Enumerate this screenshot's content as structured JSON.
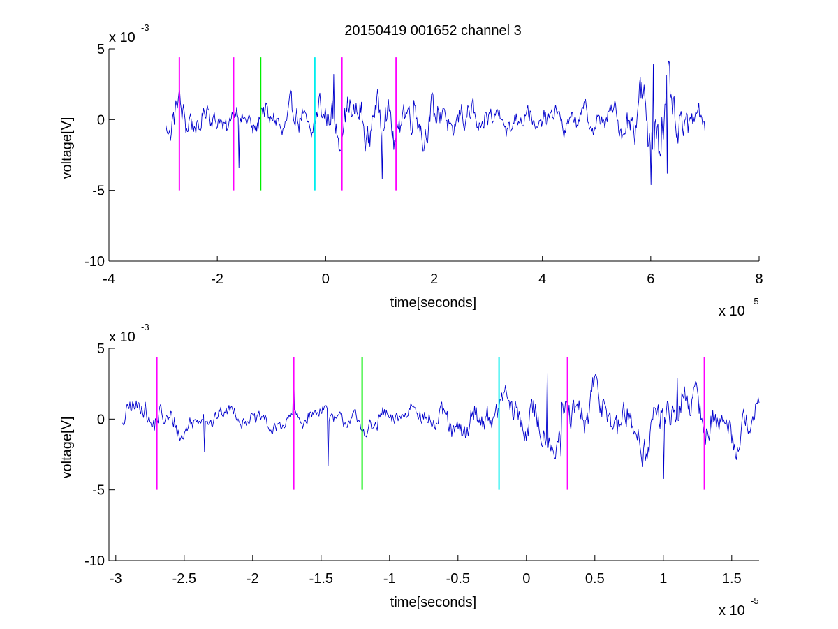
{
  "figure_title": "20150419 001652 channel 3",
  "colors": {
    "trace": "#0000cc",
    "marker_magenta": "#ff00ff",
    "marker_green": "#00ee00",
    "marker_cyan": "#00eeee",
    "axes": "#000000",
    "background": "#ffffff"
  },
  "chart_data": [
    {
      "type": "line",
      "title": "20150419 001652 channel 3",
      "xlabel": "time[seconds]",
      "ylabel": "voltage[V]",
      "x_exponent_label": "x 10",
      "x_exponent": "-5",
      "y_exponent_label": "x 10",
      "y_exponent": "-3",
      "xlim": [
        -4,
        8
      ],
      "ylim": [
        -10,
        5
      ],
      "xticks": [
        -4,
        -2,
        0,
        2,
        4,
        6,
        8
      ],
      "xtick_labels": [
        "-4",
        "-2",
        "0",
        "2",
        "4",
        "6",
        "8"
      ],
      "yticks": [
        -10,
        -5,
        0,
        5
      ],
      "ytick_labels": [
        "-10",
        "-5",
        "0",
        "5"
      ],
      "grid": false,
      "series": [
        {
          "x_range": [
            -2.95,
            7.0
          ],
          "noise_mV": 1.1,
          "bursts": [
            {
              "center": 6.1,
              "width": 0.45,
              "amp_mV": 2.6
            },
            {
              "center": 1.0,
              "width": 1.6,
              "amp_mV": 1.0
            },
            {
              "center": -2.7,
              "width": 0.3,
              "amp_mV": 0.8
            }
          ],
          "peaks": [
            {
              "x": 0.15,
              "y": 3.2
            },
            {
              "x": 6.05,
              "y": 3.9
            },
            {
              "x": 6.0,
              "y": -4.6
            },
            {
              "x": 1.05,
              "y": -4.2
            },
            {
              "x": -1.6,
              "y": -3.4
            },
            {
              "x": 6.3,
              "y": -3.8
            },
            {
              "x": 5.8,
              "y": 3.0
            }
          ]
        }
      ],
      "markers": [
        {
          "x": -2.7,
          "ymin": -5,
          "ymax": 4.4,
          "color": "magenta"
        },
        {
          "x": -1.7,
          "ymin": -5,
          "ymax": 4.4,
          "color": "magenta"
        },
        {
          "x": -1.2,
          "ymin": -5,
          "ymax": 4.4,
          "color": "green"
        },
        {
          "x": -0.2,
          "ymin": -5,
          "ymax": 4.4,
          "color": "cyan"
        },
        {
          "x": 0.3,
          "ymin": -5,
          "ymax": 4.4,
          "color": "magenta"
        },
        {
          "x": 1.3,
          "ymin": -5,
          "ymax": 4.4,
          "color": "magenta"
        }
      ]
    },
    {
      "type": "line",
      "title": "",
      "xlabel": "time[seconds]",
      "ylabel": "voltage[V]",
      "x_exponent_label": "x 10",
      "x_exponent": "-5",
      "y_exponent_label": "x 10",
      "y_exponent": "-3",
      "xlim": [
        -3.05,
        1.7
      ],
      "ylim": [
        -10,
        5
      ],
      "xticks": [
        -3,
        -2.5,
        -2,
        -1.5,
        -1,
        -0.5,
        0,
        0.5,
        1,
        1.5
      ],
      "xtick_labels": [
        "-3",
        "-2.5",
        "-2",
        "-1.5",
        "-1",
        "-0.5",
        "0",
        "0.5",
        "1",
        "1.5"
      ],
      "yticks": [
        -10,
        -5,
        0,
        5
      ],
      "ytick_labels": [
        "-10",
        "-5",
        "0",
        "5"
      ],
      "grid": false,
      "series": [
        {
          "x_range": [
            -2.95,
            1.7
          ],
          "noise_mV": 0.9,
          "bursts": [
            {
              "center": 0.7,
              "width": 1.2,
              "amp_mV": 1.6
            },
            {
              "center": -2.7,
              "width": 0.25,
              "amp_mV": 0.7
            }
          ],
          "peaks": [
            {
              "x": -1.7,
              "y": 3.6
            },
            {
              "x": 0.15,
              "y": 3.2
            },
            {
              "x": 1.1,
              "y": 2.9
            },
            {
              "x": -1.45,
              "y": -3.3
            },
            {
              "x": 1.0,
              "y": -4.2
            },
            {
              "x": 0.25,
              "y": -2.6
            },
            {
              "x": -2.35,
              "y": -2.3
            }
          ]
        }
      ],
      "markers": [
        {
          "x": -2.7,
          "ymin": -5,
          "ymax": 4.4,
          "color": "magenta"
        },
        {
          "x": -1.7,
          "ymin": -5,
          "ymax": 4.4,
          "color": "magenta"
        },
        {
          "x": -1.2,
          "ymin": -5,
          "ymax": 4.4,
          "color": "green"
        },
        {
          "x": -0.2,
          "ymin": -5,
          "ymax": 4.4,
          "color": "cyan"
        },
        {
          "x": 0.3,
          "ymin": -5,
          "ymax": 4.4,
          "color": "magenta"
        },
        {
          "x": 1.3,
          "ymin": -5,
          "ymax": 4.4,
          "color": "magenta"
        }
      ]
    }
  ]
}
